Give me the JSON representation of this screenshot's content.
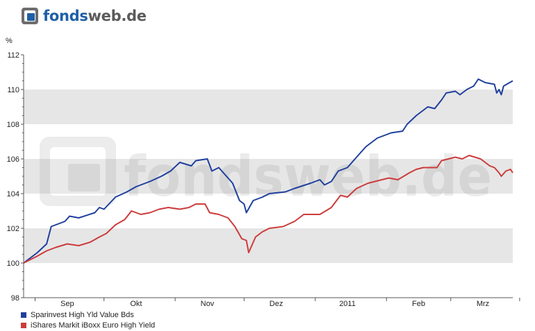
{
  "logo": {
    "text_a": "fonds",
    "text_b": "web.de",
    "icon": "fondsweb-logo-icon"
  },
  "watermark": {
    "text": "fondsweb.de"
  },
  "colors": {
    "series1": "#1f3f9e",
    "series2": "#cc3b3b",
    "band": "#e6e6e6",
    "axis": "#555555"
  },
  "chart_data": {
    "type": "line",
    "yunit": "%",
    "ylim": [
      98,
      112
    ],
    "yticks": [
      98,
      100,
      102,
      104,
      106,
      108,
      110,
      112
    ],
    "grid": "alternating horizontal bands",
    "legend_position": "bottom-left",
    "month_labels": [
      {
        "label": "Sep",
        "date": "2010-09-15"
      },
      {
        "label": "Okt",
        "date": "2010-10-15"
      },
      {
        "label": "Nov",
        "date": "2010-11-15"
      },
      {
        "label": "Dez",
        "date": "2010-12-15"
      },
      {
        "label": "2011",
        "date": "2011-01-15"
      },
      {
        "label": "Feb",
        "date": "2011-02-15"
      },
      {
        "label": "Mrz",
        "date": "2011-03-15"
      }
    ],
    "month_boundaries": [
      "2010-09-01",
      "2010-10-01",
      "2010-11-01",
      "2010-12-01",
      "2011-01-01",
      "2011-02-01",
      "2011-03-01",
      "2011-03-31"
    ],
    "xlim": [
      "2010-08-27",
      "2011-03-28"
    ],
    "series": [
      {
        "name": "Sparinvest High Yld Value Bds",
        "color": "#1f3f9e",
        "points": [
          [
            "2010-08-27",
            100.0
          ],
          [
            "2010-09-02",
            100.6
          ],
          [
            "2010-09-06",
            101.1
          ],
          [
            "2010-09-08",
            102.1
          ],
          [
            "2010-09-14",
            102.4
          ],
          [
            "2010-09-16",
            102.7
          ],
          [
            "2010-09-20",
            102.6
          ],
          [
            "2010-09-27",
            102.9
          ],
          [
            "2010-09-29",
            103.2
          ],
          [
            "2010-10-01",
            103.1
          ],
          [
            "2010-10-06",
            103.8
          ],
          [
            "2010-10-11",
            104.1
          ],
          [
            "2010-10-15",
            104.4
          ],
          [
            "2010-10-21",
            104.7
          ],
          [
            "2010-10-26",
            105.0
          ],
          [
            "2010-10-30",
            105.3
          ],
          [
            "2010-11-03",
            105.8
          ],
          [
            "2010-11-08",
            105.6
          ],
          [
            "2010-11-10",
            105.9
          ],
          [
            "2010-11-15",
            106.0
          ],
          [
            "2010-11-17",
            105.3
          ],
          [
            "2010-11-20",
            105.5
          ],
          [
            "2010-11-24",
            104.9
          ],
          [
            "2010-11-26",
            104.6
          ],
          [
            "2010-11-29",
            103.6
          ],
          [
            "2010-12-01",
            103.4
          ],
          [
            "2010-12-02",
            102.9
          ],
          [
            "2010-12-05",
            103.6
          ],
          [
            "2010-12-09",
            103.8
          ],
          [
            "2010-12-12",
            104.0
          ],
          [
            "2010-12-19",
            104.1
          ],
          [
            "2010-12-23",
            104.3
          ],
          [
            "2010-12-30",
            104.6
          ],
          [
            "2011-01-03",
            104.8
          ],
          [
            "2011-01-05",
            104.5
          ],
          [
            "2011-01-08",
            104.7
          ],
          [
            "2011-01-11",
            105.3
          ],
          [
            "2011-01-15",
            105.5
          ],
          [
            "2011-01-19",
            106.1
          ],
          [
            "2011-01-23",
            106.7
          ],
          [
            "2011-01-28",
            107.2
          ],
          [
            "2011-02-03",
            107.5
          ],
          [
            "2011-02-08",
            107.6
          ],
          [
            "2011-02-10",
            108.0
          ],
          [
            "2011-02-14",
            108.5
          ],
          [
            "2011-02-19",
            109.0
          ],
          [
            "2011-02-22",
            108.9
          ],
          [
            "2011-02-25",
            109.4
          ],
          [
            "2011-02-27",
            109.8
          ],
          [
            "2011-03-03",
            109.9
          ],
          [
            "2011-03-05",
            109.7
          ],
          [
            "2011-03-08",
            110.0
          ],
          [
            "2011-03-11",
            110.2
          ],
          [
            "2011-03-13",
            110.6
          ],
          [
            "2011-03-16",
            110.4
          ],
          [
            "2011-03-20",
            110.3
          ],
          [
            "2011-03-21",
            109.8
          ],
          [
            "2011-03-22",
            110.0
          ],
          [
            "2011-03-23",
            109.7
          ],
          [
            "2011-03-24",
            110.2
          ],
          [
            "2011-03-28",
            110.5
          ]
        ]
      },
      {
        "name": "iShares Markit iBoxx Euro High Yield",
        "color": "#cc3b3b",
        "points": [
          [
            "2010-08-27",
            100.0
          ],
          [
            "2010-09-02",
            100.4
          ],
          [
            "2010-09-06",
            100.7
          ],
          [
            "2010-09-10",
            100.9
          ],
          [
            "2010-09-15",
            101.1
          ],
          [
            "2010-09-20",
            101.0
          ],
          [
            "2010-09-25",
            101.2
          ],
          [
            "2010-09-29",
            101.5
          ],
          [
            "2010-10-02",
            101.7
          ],
          [
            "2010-10-06",
            102.2
          ],
          [
            "2010-10-10",
            102.5
          ],
          [
            "2010-10-13",
            103.0
          ],
          [
            "2010-10-17",
            102.8
          ],
          [
            "2010-10-21",
            102.9
          ],
          [
            "2010-10-25",
            103.1
          ],
          [
            "2010-10-29",
            103.2
          ],
          [
            "2010-11-03",
            103.1
          ],
          [
            "2010-11-07",
            103.2
          ],
          [
            "2010-11-10",
            103.4
          ],
          [
            "2010-11-14",
            103.4
          ],
          [
            "2010-11-16",
            102.9
          ],
          [
            "2010-11-20",
            102.8
          ],
          [
            "2010-11-24",
            102.6
          ],
          [
            "2010-11-27",
            102.1
          ],
          [
            "2010-11-30",
            101.4
          ],
          [
            "2010-12-02",
            101.3
          ],
          [
            "2010-12-03",
            100.6
          ],
          [
            "2010-12-06",
            101.5
          ],
          [
            "2010-12-09",
            101.8
          ],
          [
            "2010-12-12",
            102.0
          ],
          [
            "2010-12-18",
            102.1
          ],
          [
            "2010-12-23",
            102.4
          ],
          [
            "2010-12-27",
            102.8
          ],
          [
            "2011-01-03",
            102.8
          ],
          [
            "2011-01-08",
            103.2
          ],
          [
            "2011-01-12",
            103.9
          ],
          [
            "2011-01-15",
            103.8
          ],
          [
            "2011-01-19",
            104.3
          ],
          [
            "2011-01-24",
            104.6
          ],
          [
            "2011-01-27",
            104.7
          ],
          [
            "2011-02-02",
            104.9
          ],
          [
            "2011-02-06",
            104.8
          ],
          [
            "2011-02-11",
            105.2
          ],
          [
            "2011-02-14",
            105.4
          ],
          [
            "2011-02-17",
            105.5
          ],
          [
            "2011-02-23",
            105.5
          ],
          [
            "2011-02-25",
            105.9
          ],
          [
            "2011-03-03",
            106.1
          ],
          [
            "2011-03-06",
            106.0
          ],
          [
            "2011-03-09",
            106.2
          ],
          [
            "2011-03-14",
            106.0
          ],
          [
            "2011-03-18",
            105.6
          ],
          [
            "2011-03-20",
            105.5
          ],
          [
            "2011-03-22",
            105.2
          ],
          [
            "2011-03-23",
            105.0
          ],
          [
            "2011-03-25",
            105.3
          ],
          [
            "2011-03-27",
            105.4
          ],
          [
            "2011-03-28",
            105.2
          ]
        ]
      }
    ]
  }
}
